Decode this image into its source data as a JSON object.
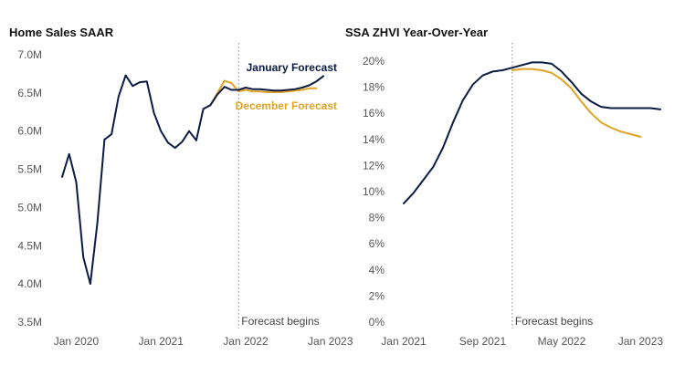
{
  "chart_data": [
    {
      "type": "line",
      "title": "Home Sales SAAR",
      "xlabel": "",
      "ylabel": "",
      "ylim": [
        3.5,
        7.0
      ],
      "xlim": [
        0,
        37
      ],
      "x_ticks": [
        {
          "x": 2,
          "label": "Jan 2020"
        },
        {
          "x": 14,
          "label": "Jan 2021"
        },
        {
          "x": 26,
          "label": "Jan 2022"
        },
        {
          "x": 38,
          "label": "Jan 2023"
        }
      ],
      "y_ticks": [
        {
          "y": 3.5,
          "label": "3.5M"
        },
        {
          "y": 4.0,
          "label": "4.0M"
        },
        {
          "y": 4.5,
          "label": "4.5M"
        },
        {
          "y": 5.0,
          "label": "5.0M"
        },
        {
          "y": 5.5,
          "label": "5.5M"
        },
        {
          "y": 6.0,
          "label": "6.0M"
        },
        {
          "y": 6.5,
          "label": "6.5M"
        },
        {
          "y": 7.0,
          "label": "7.0M"
        }
      ],
      "forecast_x": 25,
      "forecast_label": "Forecast begins",
      "series": [
        {
          "name": "January Forecast",
          "color": "#0b1b45",
          "x": [
            0,
            1,
            2,
            3,
            4,
            5,
            6,
            7,
            8,
            9,
            10,
            11,
            12,
            13,
            14,
            15,
            16,
            17,
            18,
            19,
            20,
            21,
            22,
            23,
            24,
            25,
            26,
            27,
            28,
            29,
            30,
            31,
            32,
            33,
            34,
            35,
            36,
            37
          ],
          "values": [
            5.4,
            5.7,
            5.33,
            4.35,
            4.0,
            4.8,
            5.89,
            5.96,
            6.45,
            6.73,
            6.59,
            6.64,
            6.65,
            6.24,
            6.0,
            5.85,
            5.78,
            5.86,
            6.0,
            5.88,
            6.29,
            6.34,
            6.48,
            6.58,
            6.54,
            6.54,
            6.57,
            6.55,
            6.55,
            6.54,
            6.53,
            6.53,
            6.54,
            6.55,
            6.57,
            6.6,
            6.65,
            6.72
          ]
        },
        {
          "name": "December Forecast",
          "color": "#e0a326",
          "x": [
            20,
            21,
            22,
            23,
            24,
            25,
            26,
            27,
            28,
            29,
            30,
            31,
            32,
            33,
            34,
            35,
            36
          ],
          "values": [
            6.29,
            6.34,
            6.5,
            6.66,
            6.63,
            6.52,
            6.54,
            6.52,
            6.52,
            6.51,
            6.51,
            6.51,
            6.52,
            6.53,
            6.54,
            6.56,
            6.56
          ]
        }
      ]
    },
    {
      "type": "line",
      "title": "SSA ZHVI Year-Over-Year",
      "xlabel": "",
      "ylabel": "",
      "ylim": [
        0,
        20
      ],
      "xlim": [
        0,
        26
      ],
      "x_ticks": [
        {
          "x": 0,
          "label": "Jan 2021"
        },
        {
          "x": 8,
          "label": "Sep 2021"
        },
        {
          "x": 16,
          "label": "May 2022"
        },
        {
          "x": 24,
          "label": "Jan 2023"
        }
      ],
      "y_ticks": [
        {
          "y": 0,
          "label": "0%"
        },
        {
          "y": 2,
          "label": "2%"
        },
        {
          "y": 4,
          "label": "4%"
        },
        {
          "y": 6,
          "label": "6%"
        },
        {
          "y": 8,
          "label": "8%"
        },
        {
          "y": 10,
          "label": "10%"
        },
        {
          "y": 12,
          "label": "12%"
        },
        {
          "y": 14,
          "label": "14%"
        },
        {
          "y": 16,
          "label": "16%"
        },
        {
          "y": 18,
          "label": "18%"
        },
        {
          "y": 20,
          "label": "20%"
        }
      ],
      "forecast_x": 11,
      "forecast_label": "Forecast begins",
      "series": [
        {
          "name": "January Forecast",
          "color": "#0b1b45",
          "x": [
            0,
            1,
            2,
            3,
            4,
            5,
            6,
            7,
            8,
            9,
            10,
            11,
            12,
            13,
            14,
            15,
            16,
            17,
            18,
            19,
            20,
            21,
            22,
            23,
            24,
            25,
            26
          ],
          "values": [
            9.1,
            9.9,
            10.9,
            11.9,
            13.4,
            15.3,
            17.0,
            18.2,
            18.9,
            19.2,
            19.3,
            19.5,
            19.7,
            19.9,
            19.9,
            19.8,
            19.2,
            18.4,
            17.5,
            16.9,
            16.5,
            16.4,
            16.4,
            16.4,
            16.4,
            16.4,
            16.3
          ]
        },
        {
          "name": "December Forecast",
          "color": "#e0a326",
          "x": [
            11,
            12,
            13,
            14,
            15,
            16,
            17,
            18,
            19,
            20,
            21,
            22,
            23,
            24
          ],
          "values": [
            19.3,
            19.4,
            19.4,
            19.3,
            19.1,
            18.6,
            17.9,
            16.9,
            16.0,
            15.3,
            14.9,
            14.6,
            14.4,
            14.2
          ]
        }
      ],
      "series_labels_visible": false
    }
  ]
}
